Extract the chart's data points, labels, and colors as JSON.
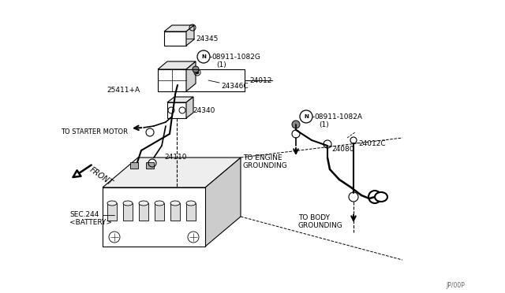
{
  "bg_color": "#ffffff",
  "lc": "#000000",
  "fig_width": 6.4,
  "fig_height": 3.72,
  "dpi": 100,
  "xlim": [
    0,
    640
  ],
  "ylim": [
    0,
    372
  ]
}
